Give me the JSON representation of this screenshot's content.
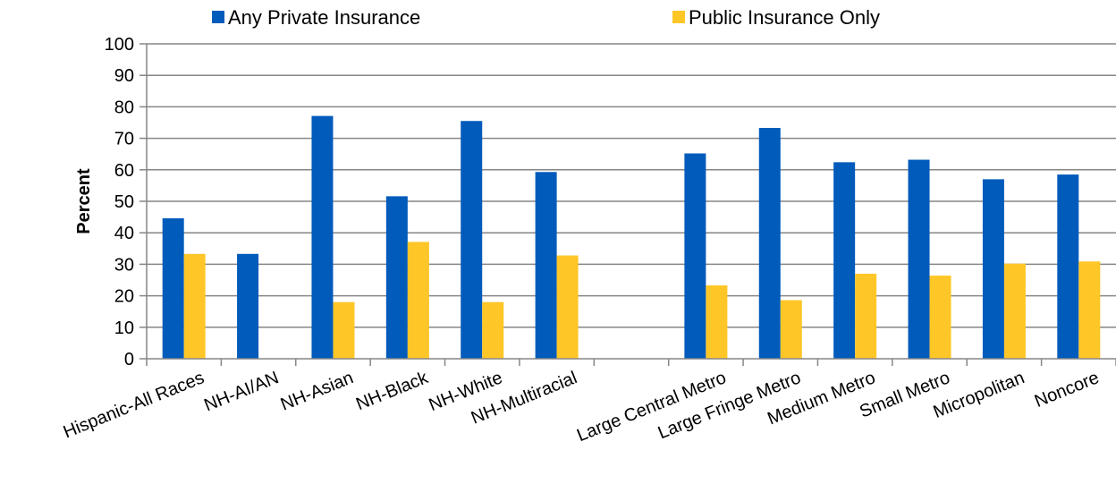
{
  "chart_data": {
    "type": "bar",
    "title": "",
    "xlabel": "",
    "ylabel": "Percent",
    "ylim": [
      0,
      100
    ],
    "yticks": [
      0,
      10,
      20,
      30,
      40,
      50,
      60,
      70,
      80,
      90,
      100
    ],
    "grid": true,
    "legend_position": "top",
    "categories": [
      "Hispanic-All Races",
      "NH-AI/AN",
      "NH-Asian",
      "NH-Black",
      "NH-White",
      "NH-Multiracial",
      "",
      "Large Central Metro",
      "Large Fringe Metro",
      "Medium Metro",
      "Small Metro",
      "Micropolitan",
      "Noncore"
    ],
    "series": [
      {
        "name": "Any Private Insurance",
        "color": "#005BBB",
        "values": [
          44.6,
          33.3,
          77.1,
          51.6,
          75.5,
          59.3,
          null,
          65.2,
          73.3,
          62.4,
          63.2,
          57.0,
          58.5
        ]
      },
      {
        "name": "Public Insurance Only",
        "color": "#FFC627",
        "values": [
          33.3,
          null,
          18.0,
          37.1,
          18.0,
          32.8,
          null,
          23.3,
          18.6,
          27.0,
          26.4,
          30.2,
          30.9
        ]
      }
    ]
  }
}
